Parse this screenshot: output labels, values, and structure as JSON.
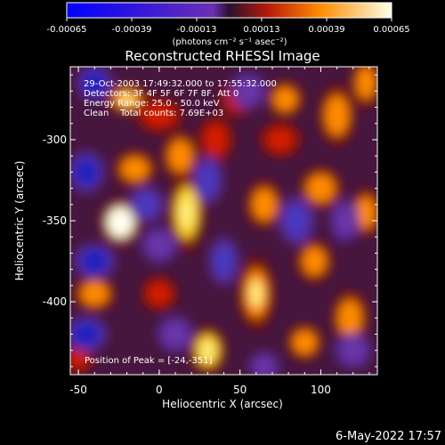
{
  "colorbar": {
    "ticks": [
      "-0.00065",
      "-0.00039",
      "-0.00013",
      "0.00013",
      "0.00039",
      "0.00065"
    ],
    "units": "(photons cm⁻² s⁻¹ asec⁻²)"
  },
  "footer": {
    "date": "6-May-2022 17:57"
  },
  "chart_data": {
    "type": "heatmap",
    "title": "Reconstructed RHESSI Image",
    "xlabel": "Heliocentric X (arcsec)",
    "ylabel": "Heliocentric Y (arcsec)",
    "xlim": [
      -55,
      135
    ],
    "ylim": [
      -445,
      -255
    ],
    "x_ticks": [
      -50,
      0,
      50,
      100
    ],
    "y_ticks": [
      -300,
      -350,
      -400
    ],
    "x_tick_labels": [
      "-50",
      "0",
      "50",
      "100"
    ],
    "y_tick_labels": [
      "-300",
      "-350",
      "-400"
    ],
    "colorbar_range": [
      -0.00065,
      0.00065
    ],
    "annotations": [
      "29-Oct-2003 17:49:32.000 to 17:55:32.000",
      "Detectors: 3F 4F 5F 6F 7F 8F, Att 0",
      "Energy Range: 25.0 - 50.0 keV",
      "Clean    Total counts: 7.69E+03"
    ],
    "peak_label": "Position of Peak = [-24,-351]",
    "peak": {
      "x": -24,
      "y": -351
    },
    "sources": [
      {
        "x": -24,
        "y": -351,
        "amp": 1.0,
        "sx": 7,
        "sy": 8
      },
      {
        "x": 17,
        "y": -345,
        "amp": 0.8,
        "sx": 6,
        "sy": 13
      },
      {
        "x": -20,
        "y": -275,
        "amp": 0.65,
        "sx": 7,
        "sy": 5
      },
      {
        "x": -15,
        "y": -318,
        "amp": 0.55,
        "sx": 7,
        "sy": 6
      },
      {
        "x": 13,
        "y": -310,
        "amp": 0.5,
        "sx": 6,
        "sy": 8
      },
      {
        "x": 0,
        "y": -285,
        "amp": 0.35,
        "sx": 8,
        "sy": 6
      },
      {
        "x": 35,
        "y": -300,
        "amp": 0.45,
        "sx": 6,
        "sy": 8
      },
      {
        "x": 48,
        "y": -275,
        "amp": 0.45,
        "sx": 6,
        "sy": 6
      },
      {
        "x": 78,
        "y": -275,
        "amp": 0.55,
        "sx": 6,
        "sy": 6
      },
      {
        "x": 75,
        "y": -300,
        "amp": 0.45,
        "sx": 7,
        "sy": 6
      },
      {
        "x": 100,
        "y": -330,
        "amp": 0.6,
        "sx": 7,
        "sy": 7
      },
      {
        "x": 110,
        "y": -285,
        "amp": 0.55,
        "sx": 6,
        "sy": 10
      },
      {
        "x": 128,
        "y": -265,
        "amp": 0.6,
        "sx": 5,
        "sy": 8
      },
      {
        "x": 128,
        "y": -345,
        "amp": 0.6,
        "sx": 5,
        "sy": 8
      },
      {
        "x": 96,
        "y": -375,
        "amp": 0.6,
        "sx": 6,
        "sy": 7
      },
      {
        "x": 60,
        "y": -395,
        "amp": 0.65,
        "sx": 6,
        "sy": 12
      },
      {
        "x": 65,
        "y": -340,
        "amp": 0.5,
        "sx": 6,
        "sy": 8
      },
      {
        "x": 30,
        "y": -430,
        "amp": 0.7,
        "sx": 6,
        "sy": 8
      },
      {
        "x": 90,
        "y": -425,
        "amp": 0.6,
        "sx": 6,
        "sy": 6
      },
      {
        "x": 118,
        "y": -410,
        "amp": 0.6,
        "sx": 6,
        "sy": 9
      },
      {
        "x": -40,
        "y": -395,
        "amp": 0.55,
        "sx": 7,
        "sy": 6
      },
      {
        "x": -50,
        "y": -435,
        "amp": 0.35,
        "sx": 5,
        "sy": 5
      },
      {
        "x": 0,
        "y": -395,
        "amp": 0.35,
        "sx": 6,
        "sy": 6
      },
      {
        "x": -40,
        "y": -265,
        "amp": -0.9,
        "sx": 6,
        "sy": 6
      },
      {
        "x": -45,
        "y": -320,
        "amp": -0.75,
        "sx": 6,
        "sy": 7
      },
      {
        "x": -40,
        "y": -375,
        "amp": -0.85,
        "sx": 7,
        "sy": 6
      },
      {
        "x": -45,
        "y": -420,
        "amp": -0.75,
        "sx": 7,
        "sy": 6
      },
      {
        "x": -8,
        "y": -340,
        "amp": -0.55,
        "sx": 6,
        "sy": 6
      },
      {
        "x": 0,
        "y": -365,
        "amp": -0.5,
        "sx": 6,
        "sy": 6
      },
      {
        "x": 30,
        "y": -325,
        "amp": -0.6,
        "sx": 5,
        "sy": 8
      },
      {
        "x": 40,
        "y": -375,
        "amp": -0.55,
        "sx": 5,
        "sy": 8
      },
      {
        "x": 55,
        "y": -270,
        "amp": -0.5,
        "sx": 6,
        "sy": 6
      },
      {
        "x": 85,
        "y": -350,
        "amp": -0.6,
        "sx": 6,
        "sy": 8
      },
      {
        "x": 115,
        "y": -350,
        "amp": -0.5,
        "sx": 5,
        "sy": 7
      },
      {
        "x": 65,
        "y": -440,
        "amp": -0.45,
        "sx": 5,
        "sy": 5
      },
      {
        "x": 120,
        "y": -430,
        "amp": -0.5,
        "sx": 6,
        "sy": 6
      },
      {
        "x": 10,
        "y": -420,
        "amp": -0.4,
        "sx": 6,
        "sy": 6
      }
    ]
  }
}
